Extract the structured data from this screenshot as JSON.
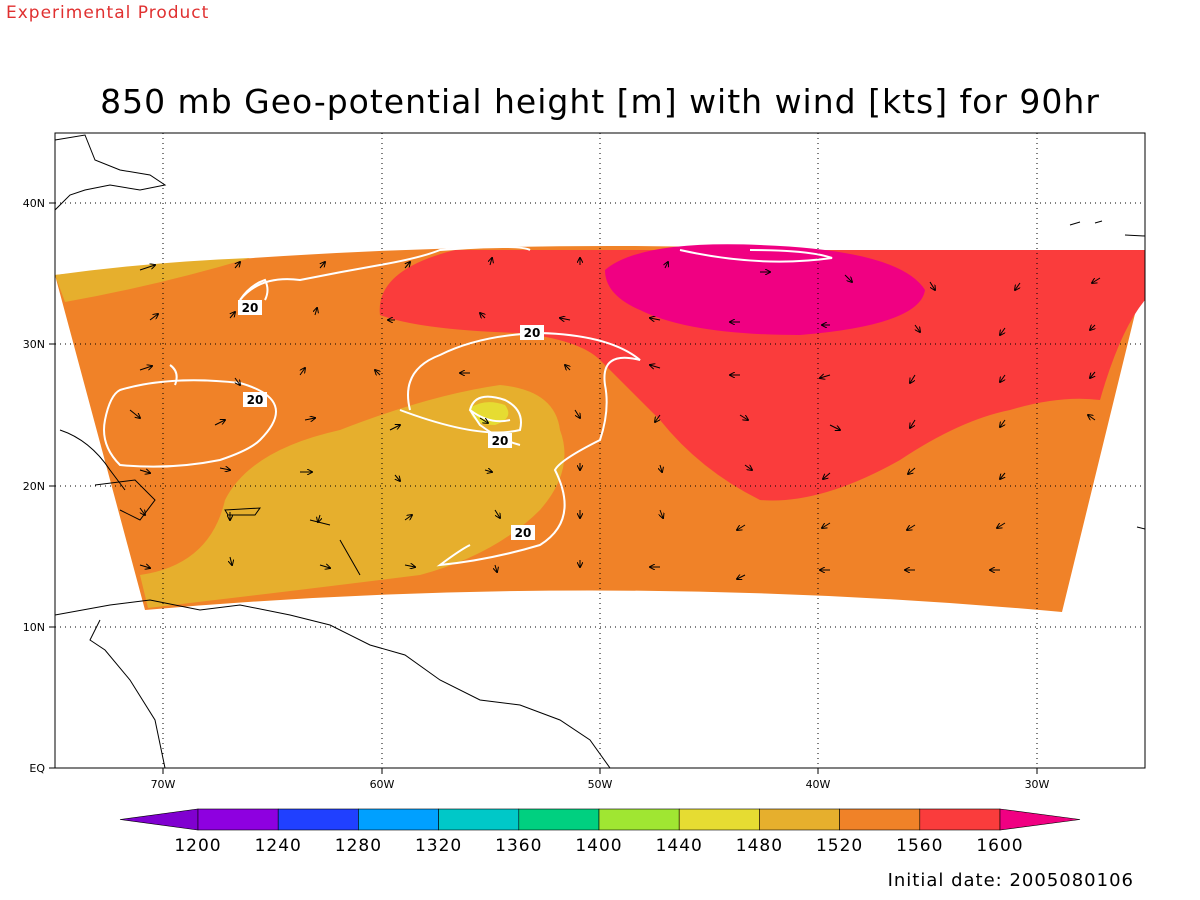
{
  "header": {
    "product_label": "Experimental Product",
    "title": "850 mb Geo-potential height [m] with wind [kts] for 90hr"
  },
  "footer": {
    "initial_date": "Initial date: 2005080106"
  },
  "map": {
    "lon_ticks": [
      "70W",
      "60W",
      "50W",
      "40W",
      "30W"
    ],
    "lat_ticks": [
      "40N",
      "30N",
      "20N",
      "10N",
      "EQ"
    ],
    "contour_labels": [
      "20",
      "20",
      "20",
      "20",
      "20"
    ]
  },
  "colorbar": {
    "levels": [
      "1200",
      "1240",
      "1280",
      "1320",
      "1360",
      "1400",
      "1440",
      "1480",
      "1520",
      "1560",
      "1600"
    ],
    "colors": [
      "#8000d0",
      "#8e00e0",
      "#2040ff",
      "#00a0ff",
      "#00c8c8",
      "#00d080",
      "#a0e632",
      "#e6dc32",
      "#e6af2d",
      "#f08228",
      "#fa3c3c",
      "#f00082"
    ]
  },
  "field_colors": {
    "c1480": "#e6dc32",
    "c1520": "#e6af2d",
    "c1560": "#f08228",
    "c1600": "#fa3c3c",
    "c1640": "#f00082"
  }
}
